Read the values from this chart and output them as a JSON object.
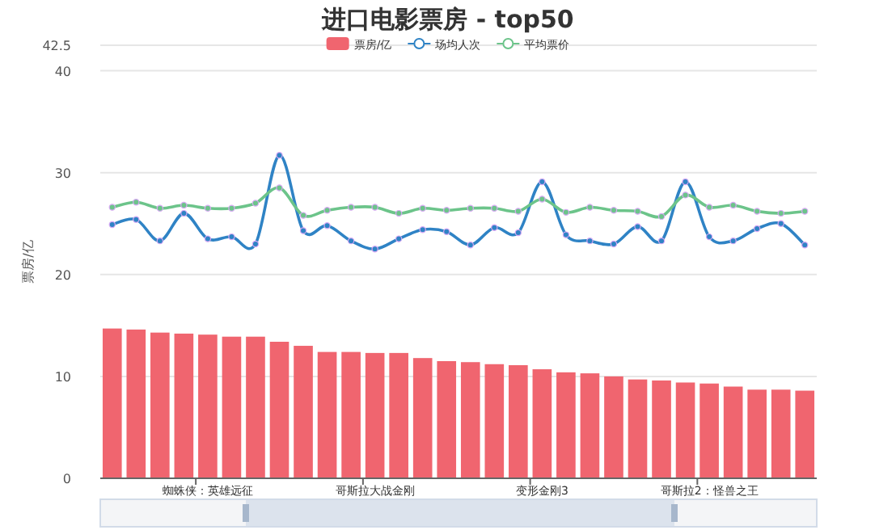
{
  "chart_data": {
    "type": "bar",
    "title": "进口电影票房 - top50",
    "ylabel": "票房/亿",
    "categories": [
      null,
      null,
      null,
      null,
      "蜘蛛侠：英雄远征",
      null,
      null,
      null,
      null,
      null,
      null,
      "哥斯拉大战金刚",
      null,
      null,
      null,
      null,
      null,
      null,
      "变形金刚3",
      null,
      null,
      null,
      null,
      null,
      null,
      "哥斯拉2：怪兽之王",
      null,
      null,
      null,
      null
    ],
    "series": [
      {
        "name": "票房/亿",
        "color": "#f0656f",
        "values": [
          14.7,
          14.6,
          14.3,
          14.2,
          14.1,
          13.9,
          13.9,
          13.4,
          13.0,
          12.4,
          12.4,
          12.3,
          12.3,
          11.8,
          11.5,
          11.4,
          11.2,
          11.1,
          10.7,
          10.4,
          10.3,
          10.0,
          9.7,
          9.6,
          9.4,
          9.3,
          9.0,
          8.7,
          8.7,
          8.6
        ]
      },
      {
        "name": "场均人次",
        "type": "line",
        "color": "#2f83c5",
        "values": [
          24.9,
          25.4,
          23.3,
          26.0,
          23.5,
          23.7,
          23.0,
          31.7,
          24.3,
          24.8,
          23.3,
          22.5,
          23.5,
          24.4,
          24.2,
          22.9,
          24.6,
          24.1,
          29.1,
          23.9,
          23.3,
          23.0,
          24.7,
          23.3,
          29.1,
          23.7,
          23.3,
          24.5,
          25.0,
          22.9
        ]
      },
      {
        "name": "平均票价",
        "type": "line",
        "color": "#6cc48a",
        "values": [
          26.6,
          27.1,
          26.5,
          26.8,
          26.5,
          26.5,
          27.0,
          28.5,
          25.8,
          26.3,
          26.6,
          26.6,
          26.0,
          26.5,
          26.3,
          26.5,
          26.5,
          26.2,
          27.4,
          26.1,
          26.6,
          26.3,
          26.2,
          25.7,
          27.8,
          26.6,
          26.8,
          26.2,
          26.0,
          26.2
        ]
      }
    ],
    "ylim": [
      0,
      42.5
    ],
    "yticks": [
      0,
      10,
      20,
      30,
      40,
      42.5
    ],
    "grid": "y",
    "legend": "top",
    "marker": "circle",
    "line_style": "solid"
  }
}
